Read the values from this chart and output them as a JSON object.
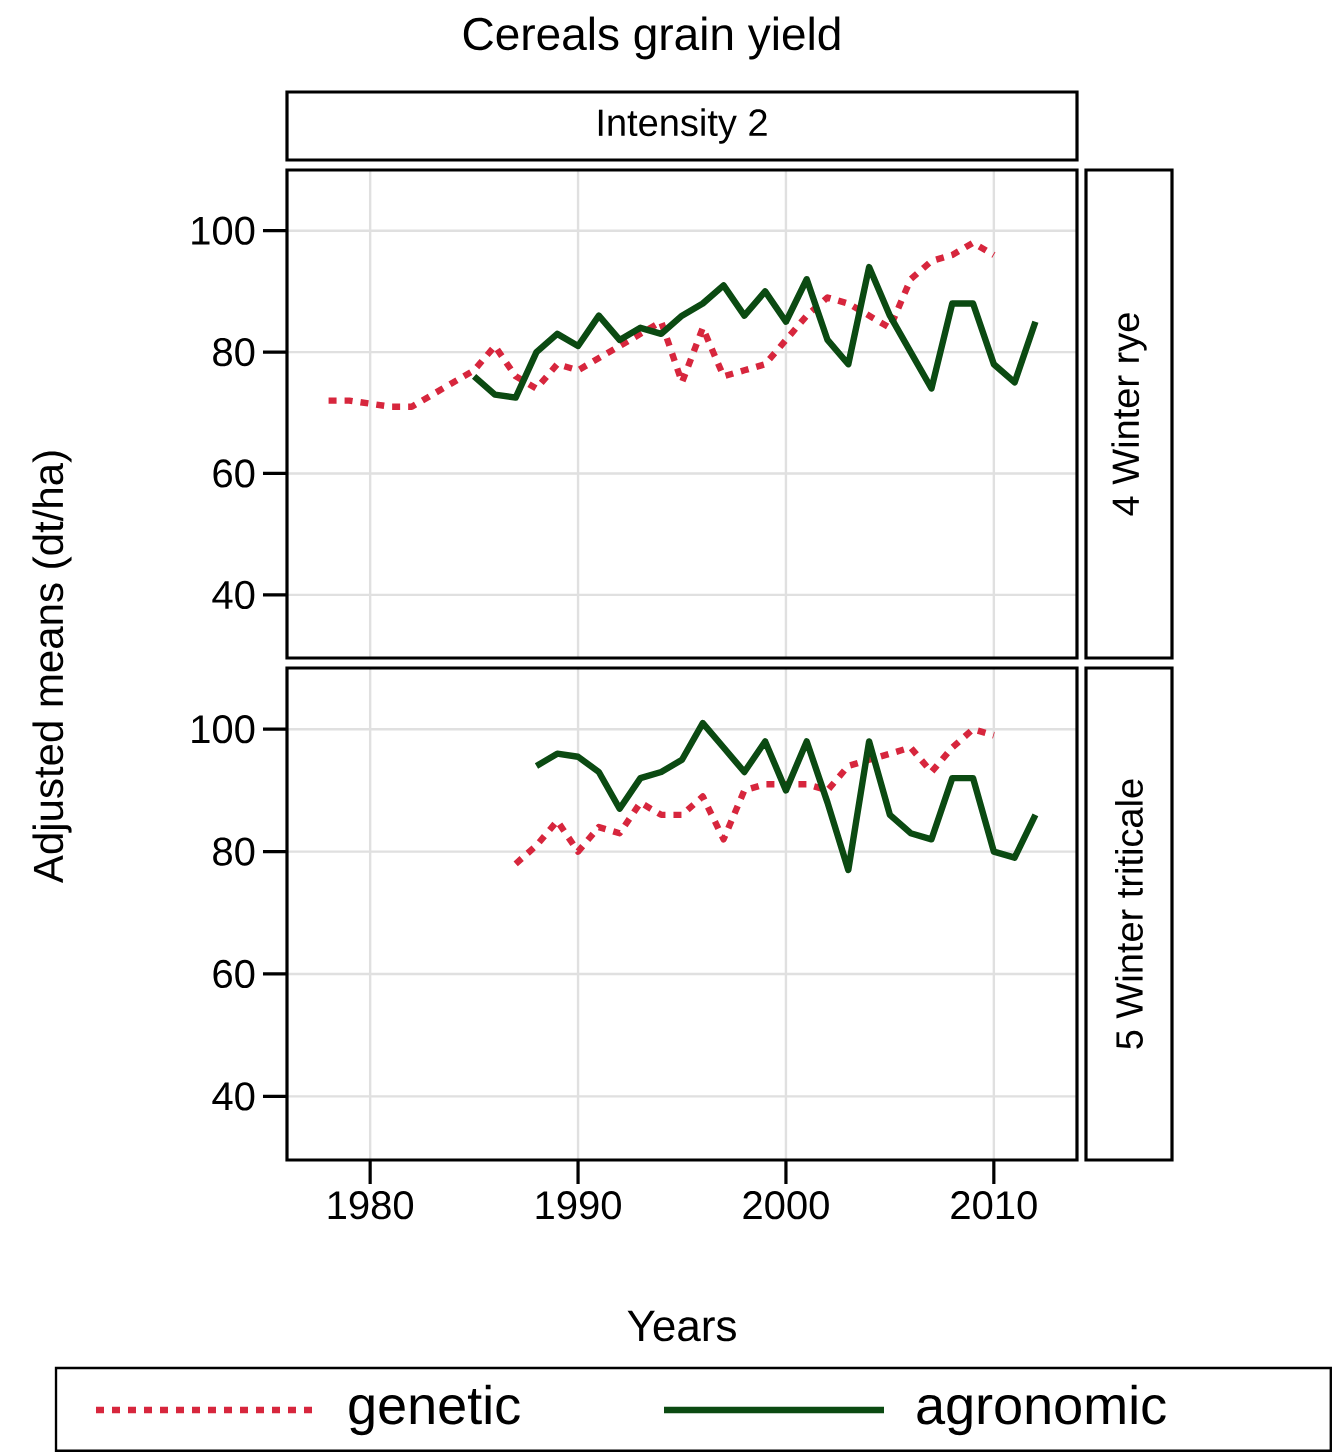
{
  "chart_data": [
    {
      "type": "line",
      "title": "Cereals grain yield",
      "subtitle": "Intensity 2",
      "ylabel": "Adjusted means (dt/ha)",
      "annotations": [
        "4 Winter rye"
      ],
      "xlim": [
        1976,
        2014
      ],
      "xticks": [
        1980,
        1990,
        2000,
        2010
      ],
      "ylim": [
        29.6,
        110
      ],
      "yticks": [
        40,
        60,
        80,
        100
      ],
      "grid": true,
      "tick_labels": "y",
      "series": [
        {
          "color": "#d7263d",
          "line_style": "dotted",
          "x": [
            1978,
            1979,
            1980,
            1981,
            1982,
            1983,
            1984,
            1985,
            1986,
            1987,
            1988,
            1989,
            1990,
            1991,
            1992,
            1993,
            1994,
            1995,
            1996,
            1997,
            1998,
            1999,
            2000,
            2001,
            2002,
            2003,
            2004,
            2005,
            2006,
            2007,
            2008,
            2009,
            2010
          ],
          "values": [
            72,
            72,
            71.5,
            71,
            71,
            73,
            75,
            77,
            81,
            76,
            74,
            78,
            77,
            79,
            81,
            83,
            85,
            75,
            84,
            76,
            77,
            78,
            82,
            86,
            89,
            88,
            86,
            84,
            92,
            95,
            96,
            98,
            96
          ]
        },
        {
          "color": "#0b4a12",
          "line_style": "solid",
          "x": [
            1985,
            1986,
            1987,
            1988,
            1989,
            1990,
            1991,
            1992,
            1993,
            1994,
            1995,
            1996,
            1997,
            1998,
            1999,
            2000,
            2001,
            2002,
            2003,
            2004,
            2005,
            2006,
            2007,
            2008,
            2009,
            2010,
            2011,
            2012
          ],
          "values": [
            76,
            73,
            72.5,
            80,
            83,
            81,
            86,
            82,
            84,
            83,
            86,
            88,
            91,
            86,
            90,
            85,
            92,
            82,
            78,
            94,
            86,
            80,
            74,
            88,
            88,
            78,
            75,
            85
          ]
        }
      ]
    },
    {
      "type": "line",
      "xlabel": "Years",
      "annotations": [
        "5 Winter triticale"
      ],
      "legend": "bottom",
      "xlim": [
        1976,
        2014
      ],
      "xticks": [
        1980,
        1990,
        2000,
        2010
      ],
      "ylim": [
        29.6,
        110
      ],
      "yticks": [
        40,
        60,
        80,
        100
      ],
      "grid": true,
      "series": [
        {
          "name": "genetic",
          "color": "#d7263d",
          "line_style": "dotted",
          "x": [
            1987,
            1988,
            1989,
            1990,
            1991,
            1992,
            1993,
            1994,
            1995,
            1996,
            1997,
            1998,
            1999,
            2000,
            2001,
            2002,
            2003,
            2004,
            2005,
            2006,
            2007,
            2008,
            2009,
            2010
          ],
          "values": [
            78,
            81,
            85,
            80,
            84,
            83,
            88,
            86,
            86,
            89,
            82,
            90,
            91,
            91,
            91,
            90,
            94,
            95,
            96,
            97,
            93,
            97,
            100,
            99
          ]
        },
        {
          "name": "agronomic",
          "color": "#0b4a12",
          "line_style": "solid",
          "x": [
            1988,
            1989,
            1990,
            1991,
            1992,
            1993,
            1994,
            1995,
            1996,
            1997,
            1998,
            1999,
            2000,
            2001,
            2002,
            2003,
            2004,
            2005,
            2006,
            2007,
            2008,
            2009,
            2010,
            2011,
            2012
          ],
          "values": [
            94,
            96,
            95.5,
            93,
            87,
            92,
            93,
            95,
            101,
            97,
            93,
            98,
            90,
            98,
            88,
            77,
            98,
            86,
            83,
            82,
            92,
            92,
            80,
            79,
            86
          ]
        }
      ]
    }
  ]
}
